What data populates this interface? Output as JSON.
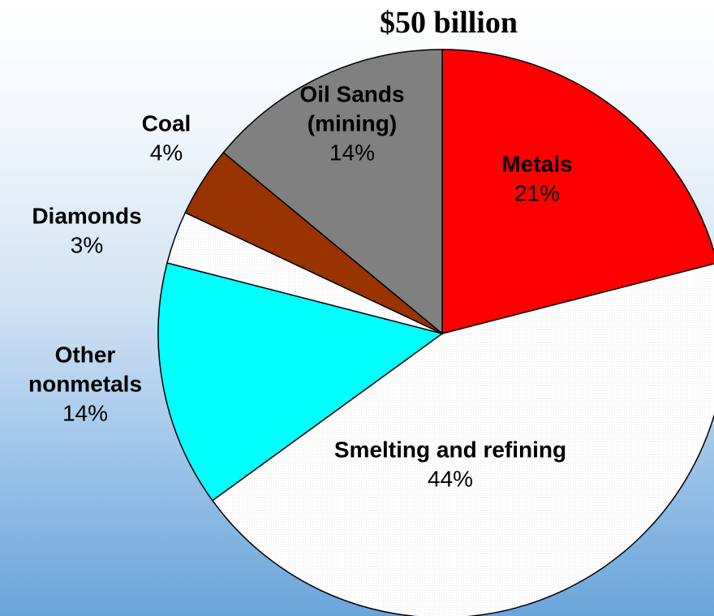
{
  "chart_data": {
    "type": "pie",
    "title": "$50 billion",
    "slices": [
      {
        "name_lines": [
          "Metals"
        ],
        "value": 21,
        "pct_label": "21%",
        "color": "#ff0000"
      },
      {
        "name_lines": [
          "Smelting and refining"
        ],
        "value": 44,
        "pct_label": "44%",
        "color": "#ffffff"
      },
      {
        "name_lines": [
          "Other",
          "nonmetals"
        ],
        "value": 14,
        "pct_label": "14%",
        "color": "#00ffff"
      },
      {
        "name_lines": [
          "Diamonds"
        ],
        "value": 3,
        "pct_label": "3%",
        "color": "#ffffff"
      },
      {
        "name_lines": [
          "Coal"
        ],
        "value": 4,
        "pct_label": "4%",
        "color": "#993300"
      },
      {
        "name_lines": [
          "Oil Sands",
          "(mining)"
        ],
        "value": 14,
        "pct_label": "14%",
        "color": "#808080"
      }
    ]
  }
}
